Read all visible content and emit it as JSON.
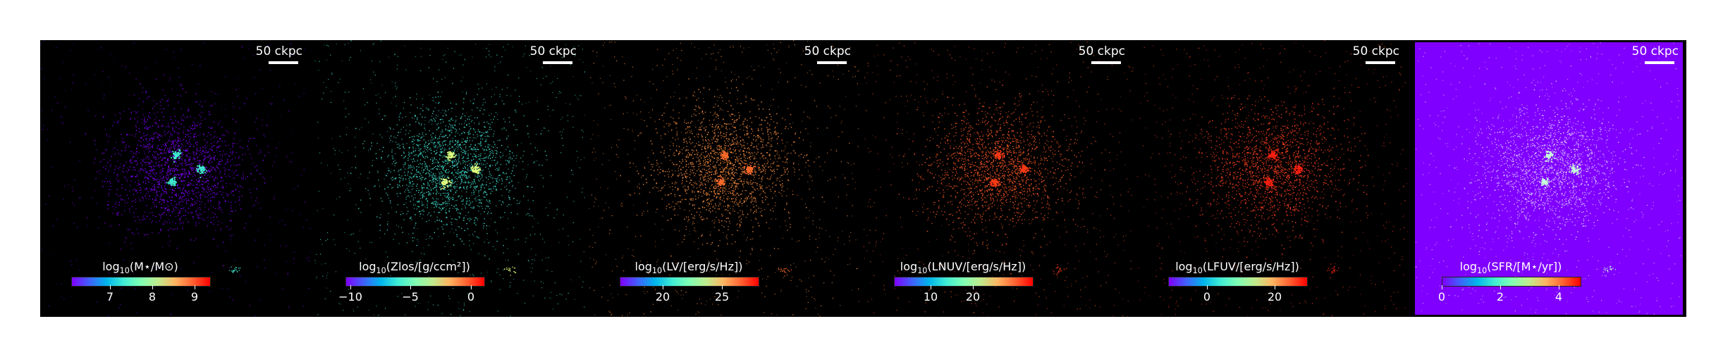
{
  "colors": {
    "background": "#000000",
    "sfr_background": "#8000ff"
  },
  "panels": [
    {
      "scalebar": "50 ckpc",
      "cbar_pre": "log",
      "cbar_sub": "10",
      "cbar_post": "(M⋆/M⊙)",
      "ticks": [
        "7",
        "8",
        "9"
      ],
      "point_color": "#8000ff",
      "core_color": "#40ecd4",
      "background": "#000000"
    },
    {
      "scalebar": "50 ckpc",
      "cbar_pre": "log",
      "cbar_sub": "10",
      "cbar_post": "(Zlos/[g/ccm²])",
      "ticks": [
        "−10",
        "−5",
        "0"
      ],
      "point_color": "#3fe0d0",
      "core_color": "#e0ff80",
      "background": "#000000"
    },
    {
      "scalebar": "50 ckpc",
      "cbar_pre": "log",
      "cbar_sub": "10",
      "cbar_post": "(LV/[erg/s/Hz])",
      "ticks": [
        "20",
        "25"
      ],
      "point_color": "#ff9040",
      "core_color": "#ff6a2a",
      "background": "#000000"
    },
    {
      "scalebar": "50 ckpc",
      "cbar_pre": "log",
      "cbar_sub": "10",
      "cbar_post": "(LNUV/[erg/s/Hz])",
      "ticks": [
        "10",
        "20"
      ],
      "point_color": "#ff5a25",
      "core_color": "#ff3a15",
      "background": "#000000"
    },
    {
      "scalebar": "50 ckpc",
      "cbar_pre": "log",
      "cbar_sub": "10",
      "cbar_post": "(LFUV/[erg/s/Hz])",
      "ticks": [
        "0",
        "20"
      ],
      "point_color": "#ff4020",
      "core_color": "#ff2010",
      "background": "#000000"
    },
    {
      "scalebar": "50 ckpc",
      "cbar_pre": "log",
      "cbar_sub": "10",
      "cbar_post": "(SFR/[M⋆/yr])",
      "ticks": [
        "0",
        "2",
        "4"
      ],
      "point_color": "#d8c8ff",
      "core_color": "#c8ffd8",
      "background": "#8000ff"
    }
  ]
}
